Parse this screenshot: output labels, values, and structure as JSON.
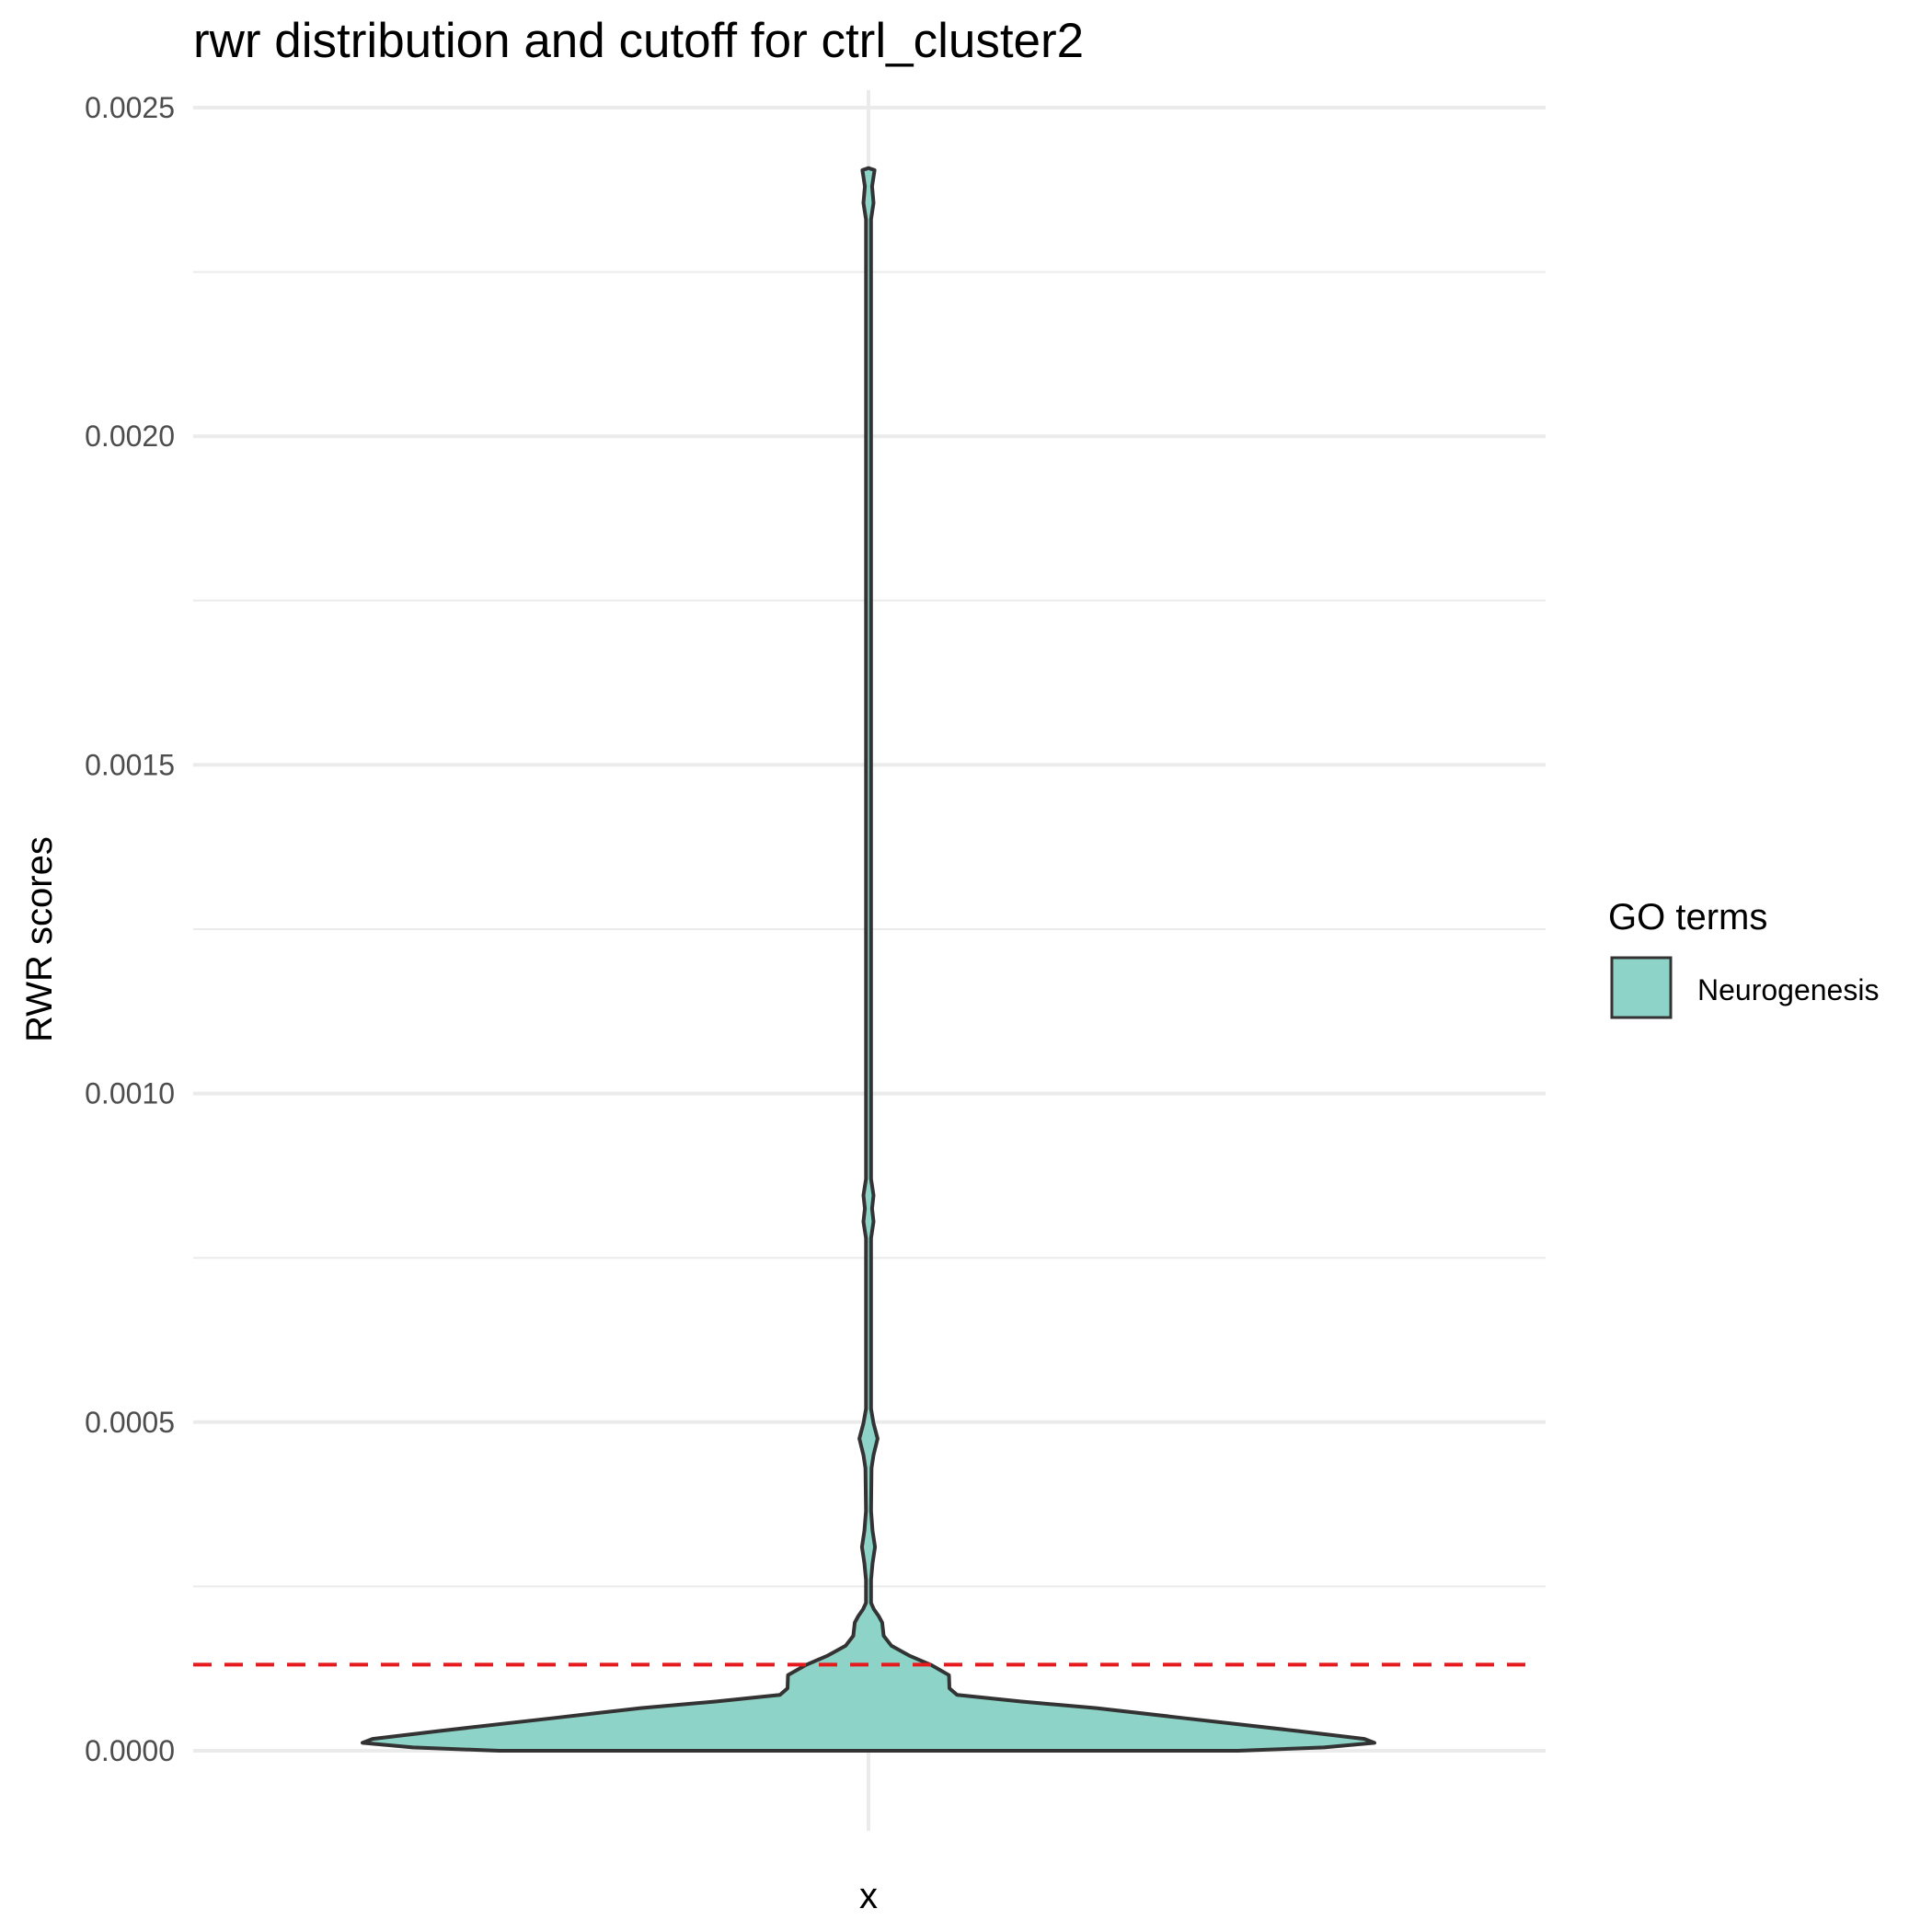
{
  "chart_data": {
    "type": "violin",
    "title": "rwr distribution and cutoff for ctrl_cluster2",
    "xlabel": "x",
    "ylabel": "RWR scores",
    "x_ticks": [
      ""
    ],
    "ylim": [
      -0.0001,
      0.0025
    ],
    "y_ticks": [
      {
        "value": 0.0,
        "label": "0.0000"
      },
      {
        "value": 0.0005,
        "label": "0.0005"
      },
      {
        "value": 0.001,
        "label": "0.0010"
      },
      {
        "value": 0.0015,
        "label": "0.0015"
      },
      {
        "value": 0.002,
        "label": "0.0020"
      },
      {
        "value": 0.0025,
        "label": "0.0025"
      }
    ],
    "y_minor_ticks": [
      0.00025,
      0.00075,
      0.00125,
      0.00175,
      0.00225
    ],
    "grid": true,
    "cutoff": {
      "value": 0.000131,
      "color": "#e41a1c",
      "style": "dashed"
    },
    "legend": {
      "title": "GO terms",
      "position": "right",
      "items": [
        {
          "label": "Neurogenesis",
          "color": "#8dd3c7"
        }
      ]
    },
    "series": [
      {
        "name": "Neurogenesis",
        "color": "#8dd3c7",
        "outline": "#333333",
        "density_profile": [
          {
            "y": 0.0,
            "w": 0.73
          },
          {
            "y": 5e-06,
            "w": 0.9
          },
          {
            "y": 1.2e-05,
            "w": 1.0
          },
          {
            "y": 1.8e-05,
            "w": 0.98
          },
          {
            "y": 3e-05,
            "w": 0.85
          },
          {
            "y": 5e-05,
            "w": 0.62
          },
          {
            "y": 6.5e-05,
            "w": 0.45
          },
          {
            "y": 7.5e-05,
            "w": 0.3
          },
          {
            "y": 8.5e-05,
            "w": 0.175
          },
          {
            "y": 9.5e-05,
            "w": 0.16
          },
          {
            "y": 0.000115,
            "w": 0.159
          },
          {
            "y": 0.00013,
            "w": 0.125
          },
          {
            "y": 0.000145,
            "w": 0.08
          },
          {
            "y": 0.00016,
            "w": 0.045
          },
          {
            "y": 0.000175,
            "w": 0.03
          },
          {
            "y": 0.000195,
            "w": 0.027
          },
          {
            "y": 0.000205,
            "w": 0.02
          },
          {
            "y": 0.000215,
            "w": 0.011
          },
          {
            "y": 0.000225,
            "w": 0.005
          },
          {
            "y": 0.00026,
            "w": 0.005
          },
          {
            "y": 0.000285,
            "w": 0.008
          },
          {
            "y": 0.00031,
            "w": 0.013
          },
          {
            "y": 0.000335,
            "w": 0.008
          },
          {
            "y": 0.000365,
            "w": 0.005
          },
          {
            "y": 0.00043,
            "w": 0.006
          },
          {
            "y": 0.00045,
            "w": 0.01
          },
          {
            "y": 0.000475,
            "w": 0.018
          },
          {
            "y": 0.000498,
            "w": 0.01
          },
          {
            "y": 0.00052,
            "w": 0.005
          },
          {
            "y": 0.00078,
            "w": 0.005
          },
          {
            "y": 0.000805,
            "w": 0.01
          },
          {
            "y": 0.000825,
            "w": 0.007
          },
          {
            "y": 0.000845,
            "w": 0.01
          },
          {
            "y": 0.00087,
            "w": 0.005
          },
          {
            "y": 0.00233,
            "w": 0.005
          },
          {
            "y": 0.002355,
            "w": 0.01
          },
          {
            "y": 0.00238,
            "w": 0.007
          },
          {
            "y": 0.002405,
            "w": 0.012
          },
          {
            "y": 0.002408,
            "w": 0.0
          }
        ]
      }
    ]
  }
}
